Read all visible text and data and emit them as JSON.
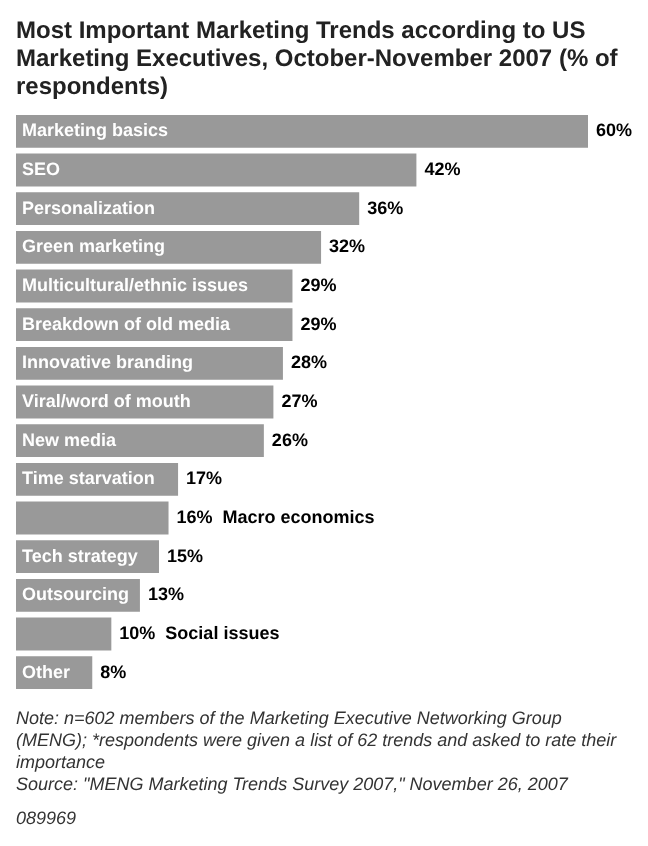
{
  "chart_data": {
    "type": "bar",
    "orientation": "horizontal",
    "title": "Most Important Marketing Trends according to US Marketing Executives, October-November 2007 (% of respondents)",
    "categories": [
      "Marketing basics",
      "SEO",
      "Personalization",
      "Green marketing",
      "Multicultural/ethnic issues",
      "Breakdown of old media",
      "Innovative branding",
      "Viral/word of mouth",
      "New media",
      "Time starvation",
      "Macro economics",
      "Tech strategy",
      "Outsourcing",
      "Social issues",
      "Other"
    ],
    "values": [
      60,
      42,
      36,
      32,
      29,
      29,
      28,
      27,
      26,
      17,
      16,
      15,
      13,
      10,
      8
    ],
    "value_labels": [
      "60%",
      "42%",
      "36%",
      "32%",
      "29%",
      "29%",
      "28%",
      "27%",
      "26%",
      "17%",
      "16%",
      "15%",
      "13%",
      "10%",
      "8%"
    ],
    "color": "#999999",
    "annotations": [
      "Note: n=602 members of the Marketing Executive Networking Group (MENG); *respondents were given a list of 62 trends and asked to rate their importance",
      "Source: \"MENG Marketing Trends Survey 2007,\" November 26, 2007",
      "089969"
    ]
  }
}
